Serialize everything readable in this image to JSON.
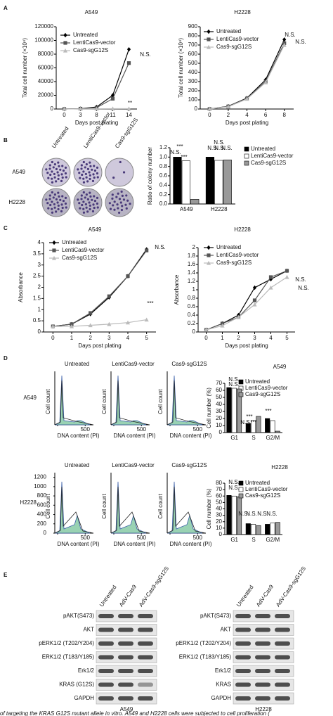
{
  "panel_labels": [
    "A",
    "B",
    "C",
    "D",
    "E"
  ],
  "chart_data": [
    {
      "type": "line",
      "title": "A549",
      "x_axis_label": "Days post plating",
      "y_axis_label": "Total cell number (×10⁴)",
      "categories": [
        "0",
        "3",
        "8",
        "11",
        "14"
      ],
      "series": [
        {
          "name": "Untreated",
          "color": "#000000",
          "marker": "diamond",
          "values": [
            0,
            500,
            3000,
            20000,
            87000
          ]
        },
        {
          "name": "LentiCas9-vector",
          "color": "#555555",
          "marker": "square",
          "values": [
            0,
            500,
            2000,
            15000,
            67000
          ]
        },
        {
          "name": "Cas9-sgG12S",
          "color": "#bbbbbb",
          "marker": "triangle",
          "values": [
            0,
            200,
            300,
            500,
            600
          ]
        }
      ],
      "ylim": [
        0,
        120000
      ],
      "yticks": [
        0,
        20000,
        40000,
        60000,
        80000,
        100000,
        120000
      ],
      "annotations": [
        "N.S.",
        "**"
      ]
    },
    {
      "type": "line",
      "title": "H2228",
      "x_axis_label": "Days post plating",
      "y_axis_label": "Total cell number (×10⁴)",
      "x": [
        0,
        2,
        4,
        6,
        8
      ],
      "series": [
        {
          "name": "Untreated",
          "color": "#000000",
          "marker": "diamond",
          "values": [
            0,
            30,
            120,
            320,
            760
          ]
        },
        {
          "name": "LentiCas9-vector",
          "color": "#555555",
          "marker": "square",
          "values": [
            0,
            28,
            115,
            300,
            720
          ]
        },
        {
          "name": "Cas9-sgG12S",
          "color": "#bbbbbb",
          "marker": "triangle",
          "values": [
            0,
            25,
            110,
            290,
            700
          ]
        }
      ],
      "xlim": [
        -1,
        9
      ],
      "xticks": [
        0,
        2,
        4,
        6,
        8
      ],
      "ylim": [
        0,
        900
      ],
      "yticks": [
        0,
        100,
        200,
        300,
        400,
        500,
        600,
        700,
        800,
        900
      ],
      "annotations": [
        "N.S.",
        "N.S."
      ]
    },
    {
      "type": "bar",
      "y_axis_label": "Ratio of colony number",
      "categories": [
        "A549",
        "H2228"
      ],
      "series": [
        {
          "name": "Untreated",
          "color": "#000000",
          "values": [
            1.0,
            1.0
          ]
        },
        {
          "name": "LentiCas9-vector",
          "color": "#ffffff",
          "values": [
            0.92,
            0.93
          ]
        },
        {
          "name": "Cas9-sgG12S",
          "color": "#999999",
          "values": [
            0.1,
            0.94
          ]
        }
      ],
      "ylim": [
        0,
        1.2
      ],
      "yticks": [
        {
          "value": 0,
          "label": "0.0"
        },
        {
          "value": 0.2,
          "label": "0.2"
        },
        {
          "value": 0.4,
          "label": "0.4"
        },
        {
          "value": 0.6,
          "label": "0.6"
        },
        {
          "value": 0.8,
          "label": "0.8"
        },
        {
          "value": 1,
          "label": "1.0"
        },
        {
          "value": 1.2,
          "label": "1.2"
        }
      ],
      "annotations": [
        "***",
        "N.S.",
        "***",
        "N.S.",
        "N.S.",
        "N.S.",
        "N.S."
      ]
    },
    {
      "type": "line",
      "title": "A549",
      "x_axis_label": "Days post plating",
      "y_axis_label": "Absorbance",
      "x": [
        0,
        1,
        2,
        3,
        4,
        5
      ],
      "series": [
        {
          "name": "Untreated",
          "color": "#000000",
          "marker": "diamond",
          "values": [
            0.25,
            0.35,
            0.8,
            1.55,
            2.5,
            3.7
          ]
        },
        {
          "name": "LentiCas9-vector",
          "color": "#555555",
          "marker": "square",
          "values": [
            0.25,
            0.35,
            0.85,
            1.6,
            2.5,
            3.65
          ]
        },
        {
          "name": "Cas9-sgG12S",
          "color": "#bbbbbb",
          "marker": "triangle",
          "values": [
            0.25,
            0.25,
            0.3,
            0.35,
            0.42,
            0.55
          ]
        }
      ],
      "xlim": [
        -0.5,
        5.5
      ],
      "xticks": [
        0,
        1,
        2,
        3,
        4,
        5
      ],
      "ylim": [
        0,
        4
      ],
      "yticks": [
        0,
        0.5,
        1,
        1.5,
        2,
        2.5,
        3,
        3.5,
        4
      ],
      "annotations": [
        "N.S.",
        "***"
      ]
    },
    {
      "type": "line",
      "title": "H2228",
      "x_axis_label": "Days post plating",
      "y_axis_label": "Absorbance",
      "x": [
        0,
        1,
        2,
        3,
        4,
        5
      ],
      "series": [
        {
          "name": "Untreated",
          "color": "#000000",
          "marker": "diamond",
          "values": [
            0.05,
            0.2,
            0.4,
            1.05,
            1.25,
            1.45
          ]
        },
        {
          "name": "LentiCas9-vector",
          "color": "#555555",
          "marker": "square",
          "values": [
            0.05,
            0.2,
            0.35,
            0.75,
            1.3,
            1.45
          ]
        },
        {
          "name": "Cas9-sgG12S",
          "color": "#bbbbbb",
          "marker": "triangle",
          "values": [
            0.05,
            0.15,
            0.35,
            0.65,
            1.05,
            1.3
          ]
        }
      ],
      "xlim": [
        -0.5,
        5.5
      ],
      "xticks": [
        0,
        1,
        2,
        3,
        4,
        5
      ],
      "ylim": [
        0,
        2
      ],
      "yticks": [
        0,
        0.2,
        0.4,
        0.6,
        0.8,
        1,
        1.2,
        1.4,
        1.6,
        1.8,
        2
      ],
      "annotations": [
        "N.S.",
        "N.S."
      ]
    },
    {
      "type": "bar",
      "title": "A549",
      "y_axis_label": "Cell number (%)",
      "categories": [
        "G1",
        "S",
        "G2/M"
      ],
      "series": [
        {
          "name": "Untreated",
          "color": "#000000",
          "values": [
            64,
            13,
            20
          ]
        },
        {
          "name": "LentiCas9-vector",
          "color": "#ffffff",
          "values": [
            63,
            17,
            17
          ]
        },
        {
          "name": "Cas9-sgG12S",
          "color": "#999999",
          "values": [
            62,
            23,
            2
          ]
        }
      ],
      "ylim": [
        0,
        70
      ],
      "yticks": [
        0,
        10,
        20,
        30,
        40,
        50,
        60,
        70
      ],
      "annotations": [
        "N.S.",
        "N.S.",
        "***",
        "N.S.",
        "***",
        "***"
      ]
    },
    {
      "type": "bar",
      "title": "H2228",
      "y_axis_label": "Cell number (%)",
      "categories": [
        "G1",
        "S",
        "G2/M"
      ],
      "series": [
        {
          "name": "Untreated",
          "color": "#000000",
          "values": [
            61,
            17,
            16
          ]
        },
        {
          "name": "LentiCas9-vector",
          "color": "#ffffff",
          "values": [
            60,
            16,
            18
          ]
        },
        {
          "name": "Cas9-sgG12S",
          "color": "#999999",
          "values": [
            59,
            14,
            19
          ]
        }
      ],
      "ylim": [
        0,
        80
      ],
      "yticks": [
        0,
        10,
        20,
        30,
        40,
        50,
        60,
        70,
        80
      ],
      "annotations": [
        "N.S.",
        "N.S.",
        "N.S.",
        "N.S.",
        "N.S.",
        "N.S."
      ]
    }
  ],
  "colony": {
    "columns": [
      "Untreated",
      "LentiCas9-vector",
      "Cas9-sgG12S"
    ],
    "rows": [
      "A549",
      "H2228"
    ]
  },
  "flow": {
    "columns": [
      "Untreated",
      "LentiCas9-vector",
      "Cas9-sgG12S"
    ],
    "rows": [
      "A549",
      "H2228"
    ],
    "y_axis_label": "Cell count",
    "x_axis_label": "DNA content (PI)",
    "xticks": [
      0,
      500
    ],
    "yticks": [
      0,
      200,
      400,
      600,
      800,
      1000,
      1200
    ]
  },
  "western": [
    {
      "columns": [
        "Untreated",
        "AdV-Cas9",
        "AdV-Cas9-sgG12S"
      ],
      "rows": [
        "pAKT(S473)",
        "AKT",
        "pERK1/2 (T202/Y204)",
        "ERK1/2 (T183/Y185)",
        "Erk1/2",
        "KRAS (G12S)",
        "GAPDH"
      ],
      "cell_line": "A549"
    },
    {
      "columns": [
        "Untreated",
        "AdV-Cas9",
        "AdV-Cas9-sgG12S"
      ],
      "rows": [
        "pAKT(S473)",
        "AKT",
        "pERK1/2 (T202/Y204)",
        "ERK1/2 (T183/Y185)",
        "Erk1/2",
        "KRAS",
        "GAPDH"
      ],
      "cell_line": "H2228"
    }
  ],
  "caption": "of targeting the KRAS G12S mutant allele in vitro. A549 and H2228 cells were subjected to cell proliferation ("
}
